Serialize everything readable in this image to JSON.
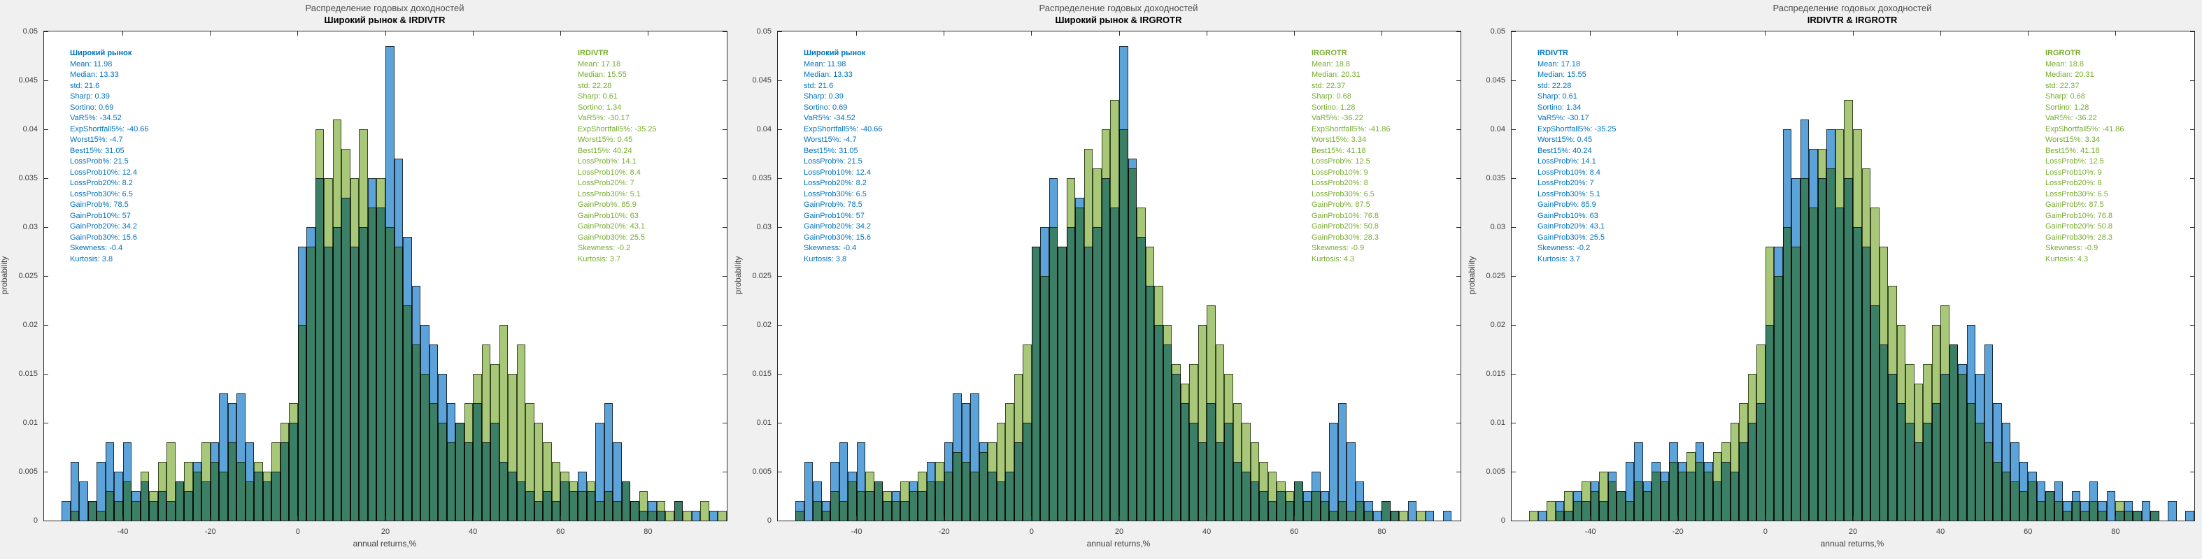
{
  "figure": {
    "background": "#f0f0f0",
    "plot_background": "#ffffff",
    "axis_color": "#2b2b2b"
  },
  "colors": {
    "blue_text": "#0072bd",
    "green_text": "#77ac30",
    "blue_bar_fill": "#5ba3d9",
    "green_bar_fill": "#a8c779",
    "overlap_fill": "#3c7f67"
  },
  "stats": {
    "broad_market": {
      "title": "Широкий рынок",
      "lines": [
        "Mean: 11.98",
        "Median: 13.33",
        "std: 21.6",
        "Sharp: 0.39",
        "Sortino: 0.69",
        "VaR5%: -34.52",
        "ExpShortfall5%: -40.66",
        "Worst15%: -4.7",
        "Best15%: 31.05",
        "LossProb%: 21.5",
        "LossProb10%: 12.4",
        "LossProb20%: 8.2",
        "LossProb30%: 6.5",
        "GainProb%: 78.5",
        "GainProb10%: 57",
        "GainProb20%: 34.2",
        "GainProb30%: 15.6",
        "Skewness: -0.4",
        "Kurtosis: 3.8"
      ]
    },
    "irdivtr": {
      "title": "IRDIVTR",
      "lines": [
        "Mean: 17.18",
        "Median: 15.55",
        "std: 22.28",
        "Sharp: 0.61",
        "Sortino: 1.34",
        "VaR5%: -30.17",
        "ExpShortfall5%: -35.25",
        "Worst15%: 0.45",
        "Best15%: 40.24",
        "LossProb%: 14.1",
        "LossProb10%: 8.4",
        "LossProb20%: 7",
        "LossProb30%: 5.1",
        "GainProb%: 85.9",
        "GainProb10%: 63",
        "GainProb20%: 43.1",
        "GainProb30%: 25.5",
        "Skewness: -0.2",
        "Kurtosis: 3.7"
      ]
    },
    "irgrotr": {
      "title": "IRGROTR",
      "lines": [
        "Mean: 18.8",
        "Median: 20.31",
        "std: 22.37",
        "Sharp: 0.68",
        "Sortino: 1.28",
        "VaR5%: -36.22",
        "ExpShortfall5%: -41.86",
        "Worst15%: 3.34",
        "Best15%: 41.18",
        "LossProb%: 12.5",
        "LossProb10%: 9",
        "LossProb20%: 8",
        "LossProb30%: 6.5",
        "GainProb%: 87.5",
        "GainProb10%: 76.8",
        "GainProb20%: 50.8",
        "GainProb30%: 28.3",
        "Skewness: -0.9",
        "Kurtosis: 4.3"
      ]
    }
  },
  "charts": [
    {
      "suptitle": "Распределение годовых доходностей",
      "title": "Широкий рынок & IRDIVTR",
      "series_keys": [
        "broad_market",
        "irdivtr"
      ],
      "left_stats_key": "broad_market",
      "right_stats_key": "irdivtr"
    },
    {
      "suptitle": "Распределение годовых доходностей",
      "title": "Широкий рынок & IRGROTR",
      "series_keys": [
        "broad_market",
        "irgrotr"
      ],
      "left_stats_key": "broad_market",
      "right_stats_key": "irgrotr"
    },
    {
      "suptitle": "Распределение годовых доходностей",
      "title": "IRDIVTR & IRGROTR",
      "series_keys": [
        "irdivtr",
        "irgrotr"
      ],
      "left_stats_key": "irdivtr",
      "right_stats_key": "irgrotr"
    }
  ],
  "chart_data": {
    "type": "bar",
    "subtype": "overlaid-probability-histograms",
    "title": "Распределение годовых доходностей",
    "xlabel": "annual returns,%",
    "ylabel": "probability",
    "xlim": [
      -58,
      98
    ],
    "ylim": [
      0,
      0.05
    ],
    "xticks": [
      -40,
      -20,
      0,
      20,
      40,
      60,
      80
    ],
    "yticks": [
      0,
      0.005,
      0.01,
      0.015,
      0.02,
      0.025,
      0.03,
      0.035,
      0.04,
      0.045,
      0.05
    ],
    "grid": false,
    "legend_position": "none",
    "bin_start": -54,
    "bin_width": 2,
    "series": {
      "broad_market": {
        "name": "Широкий рынок",
        "values": [
          0.002,
          0.006,
          0.004,
          0.002,
          0.006,
          0.008,
          0.005,
          0.008,
          0.003,
          0.004,
          0.002,
          0.003,
          0.002,
          0.004,
          0.003,
          0.006,
          0.004,
          0.008,
          0.013,
          0.012,
          0.013,
          0.008,
          0.005,
          0.004,
          0.005,
          0.008,
          0.01,
          0.028,
          0.03,
          0.035,
          0.028,
          0.03,
          0.033,
          0.028,
          0.03,
          0.035,
          0.032,
          0.0485,
          0.037,
          0.029,
          0.024,
          0.02,
          0.018,
          0.015,
          0.012,
          0.01,
          0.008,
          0.012,
          0.008,
          0.01,
          0.006,
          0.005,
          0.004,
          0.003,
          0.002,
          0.003,
          0.002,
          0.004,
          0.003,
          0.005,
          0.003,
          0.01,
          0.012,
          0.008,
          0.004,
          0.002,
          0.001,
          0.002,
          0.001,
          0.0,
          0.002,
          0.0,
          0.001,
          0.0,
          0.001,
          0.0
        ]
      },
      "irdivtr": {
        "name": "IRDIVTR",
        "values": [
          0.0,
          0.001,
          0.0,
          0.002,
          0.001,
          0.003,
          0.002,
          0.004,
          0.002,
          0.005,
          0.003,
          0.006,
          0.008,
          0.004,
          0.006,
          0.005,
          0.008,
          0.006,
          0.005,
          0.008,
          0.006,
          0.004,
          0.006,
          0.005,
          0.008,
          0.01,
          0.012,
          0.02,
          0.028,
          0.04,
          0.035,
          0.041,
          0.038,
          0.035,
          0.04,
          0.032,
          0.035,
          0.03,
          0.028,
          0.022,
          0.018,
          0.015,
          0.012,
          0.01,
          0.008,
          0.01,
          0.012,
          0.015,
          0.018,
          0.016,
          0.02,
          0.015,
          0.018,
          0.012,
          0.01,
          0.008,
          0.006,
          0.005,
          0.004,
          0.003,
          0.004,
          0.002,
          0.003,
          0.002,
          0.004,
          0.002,
          0.003,
          0.001,
          0.002,
          0.001,
          0.002,
          0.001,
          0.0,
          0.002,
          0.0,
          0.001
        ]
      },
      "irgrotr": {
        "name": "IRGROTR",
        "values": [
          0.001,
          0.0,
          0.002,
          0.001,
          0.003,
          0.002,
          0.004,
          0.003,
          0.005,
          0.004,
          0.003,
          0.002,
          0.004,
          0.003,
          0.005,
          0.004,
          0.006,
          0.005,
          0.007,
          0.006,
          0.005,
          0.007,
          0.008,
          0.01,
          0.012,
          0.015,
          0.018,
          0.028,
          0.025,
          0.03,
          0.028,
          0.035,
          0.032,
          0.038,
          0.036,
          0.04,
          0.043,
          0.04,
          0.036,
          0.032,
          0.028,
          0.024,
          0.02,
          0.016,
          0.014,
          0.016,
          0.02,
          0.022,
          0.018,
          0.015,
          0.012,
          0.01,
          0.008,
          0.006,
          0.005,
          0.004,
          0.003,
          0.004,
          0.002,
          0.003,
          0.002,
          0.001,
          0.002,
          0.001,
          0.002,
          0.001,
          0.0,
          0.002,
          0.001,
          0.001,
          0.0,
          0.001,
          0.0,
          0.0,
          0.0,
          0.0
        ]
      }
    }
  }
}
